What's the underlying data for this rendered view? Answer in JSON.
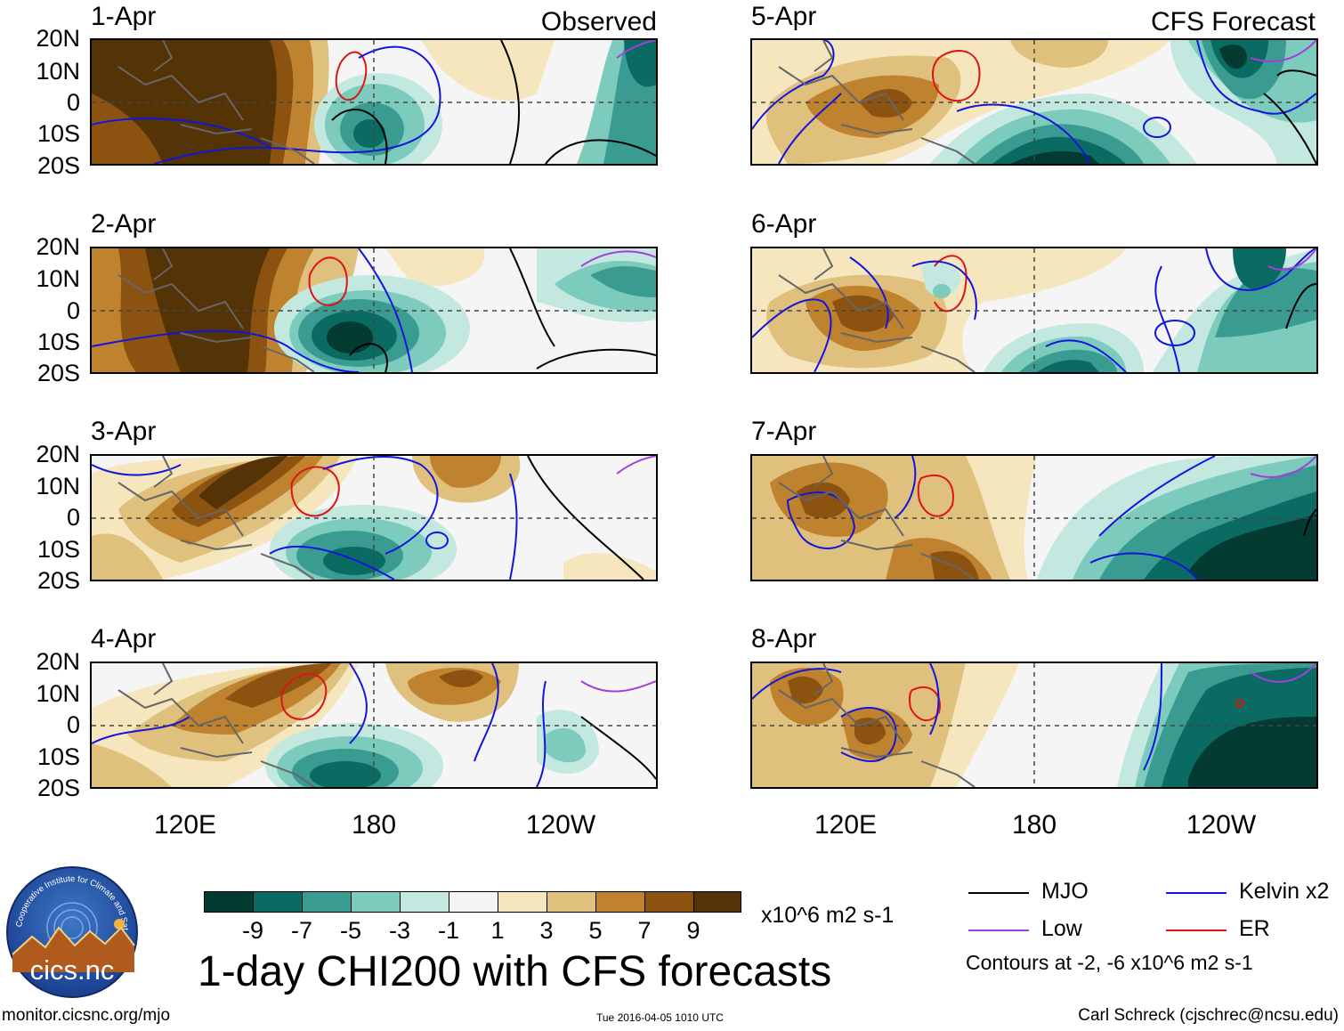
{
  "panels_observed": [
    {
      "date": "1-Apr",
      "corner": "Observed"
    },
    {
      "date": "2-Apr",
      "corner": ""
    },
    {
      "date": "3-Apr",
      "corner": ""
    },
    {
      "date": "4-Apr",
      "corner": ""
    }
  ],
  "panels_forecast": [
    {
      "date": "5-Apr",
      "corner": "CFS Forecast"
    },
    {
      "date": "6-Apr",
      "corner": ""
    },
    {
      "date": "7-Apr",
      "corner": ""
    },
    {
      "date": "8-Apr",
      "corner": ""
    }
  ],
  "lat_labels": [
    "20N",
    "10N",
    "0",
    "10S",
    "20S"
  ],
  "lon_labels": [
    "120E",
    "180",
    "120W"
  ],
  "colorbar": {
    "colors": [
      "#033b33",
      "#096b62",
      "#3a9c90",
      "#7ccbbd",
      "#c2e8e0",
      "#f5f5f5",
      "#f5e6be",
      "#dfc07d",
      "#bf822f",
      "#8c520f",
      "#543306"
    ],
    "ticks": [
      "-9",
      "-7",
      "-5",
      "-3",
      "-1",
      "1",
      "3",
      "5",
      "7",
      "9"
    ],
    "units": "x10^6 m2 s-1"
  },
  "title": "1-day CHI200 with CFS forecasts",
  "logo": {
    "text": "cics.nc",
    "ring_text": "Cooperative Institute for Climate and Satellites"
  },
  "legend": {
    "items": [
      {
        "label": "MJO",
        "color": "#000000"
      },
      {
        "label": "Kelvin x2",
        "color": "#1414e0"
      },
      {
        "label": "Low",
        "color": "#a43ee0"
      },
      {
        "label": "ER",
        "color": "#e01414"
      }
    ],
    "note": "Contours at -2, -6 x10^6 m2 s-1"
  },
  "footer": {
    "url": "monitor.cicsnc.org/mjo",
    "timestamp": "Tue 2016-04-05 1010 UTC",
    "author": "Carl Schreck (cjschrec@ncsu.edu)"
  }
}
